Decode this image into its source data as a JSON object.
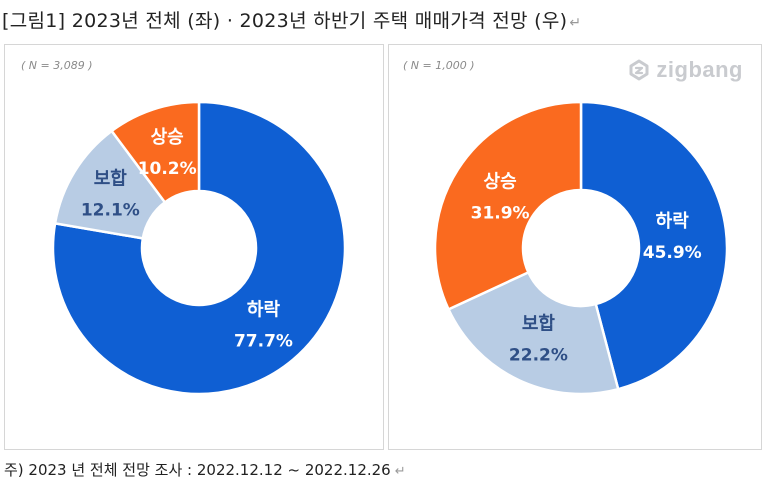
{
  "title": {
    "text": "[그림1] 2023년 전체 (좌) · 2023년 하반기 주택 매매가격 전망 (우)",
    "mark": "↵"
  },
  "footnote": {
    "text": "주) 2023 년 전체 전망 조사 : 2022.12.12 ~ 2022.12.26",
    "mark": "↵"
  },
  "logo": {
    "text": "zigbang",
    "icon": "zigbang-logo-icon",
    "color": "#c9cbcf"
  },
  "colors": {
    "하락": "#0f5fd3",
    "보합": "#b8cce4",
    "상승": "#fa6a1f",
    "label_light": "#ffffff",
    "label_dark": "#2f4f86"
  },
  "chart_data": [
    {
      "type": "pie",
      "style": "donut",
      "n_label": "( N = 3,089 )",
      "title": "2023년 전체",
      "slices": [
        {
          "name": "하락",
          "value": 77.7,
          "pct": "77.7%"
        },
        {
          "name": "보합",
          "value": 12.1,
          "pct": "12.1%"
        },
        {
          "name": "상승",
          "value": 10.2,
          "pct": "10.2%"
        }
      ]
    },
    {
      "type": "pie",
      "style": "donut",
      "n_label": "( N = 1,000 )",
      "title": "2023년 하반기",
      "slices": [
        {
          "name": "하락",
          "value": 45.9,
          "pct": "45.9%"
        },
        {
          "name": "보합",
          "value": 22.2,
          "pct": "22.2%"
        },
        {
          "name": "상승",
          "value": 31.9,
          "pct": "31.9%"
        }
      ]
    }
  ]
}
